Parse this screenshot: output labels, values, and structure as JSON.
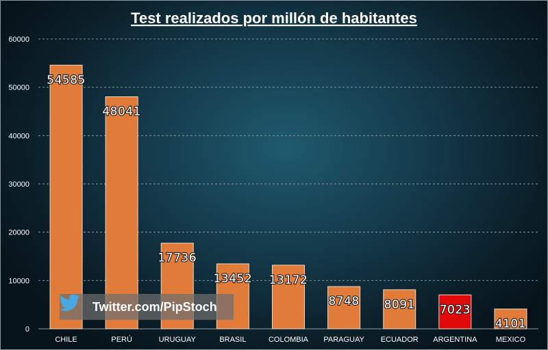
{
  "chart_data": {
    "type": "bar",
    "title": "Test realizados por millón de habitantes",
    "xlabel": "",
    "ylabel": "",
    "categories": [
      "CHILE",
      "PERÚ",
      "URUGUAY",
      "BRASIL",
      "COLOMBIA",
      "PARAGUAY",
      "ECUADOR",
      "ARGENTINA",
      "MEXICO"
    ],
    "values": [
      54585,
      48041,
      17736,
      13452,
      13172,
      8748,
      8091,
      7023,
      4101
    ],
    "value_labels": [
      "54585",
      "48041",
      "17736",
      "13452",
      "13172",
      "8748",
      "8091",
      "7023",
      "4101"
    ],
    "ylim": [
      0,
      60000
    ],
    "yticks": [
      0,
      10000,
      20000,
      30000,
      40000,
      50000,
      60000
    ],
    "ytick_labels": [
      "0",
      "10000",
      "20000",
      "30000",
      "40000",
      "50000",
      "60000"
    ],
    "grid": "horizontal dashed",
    "bar_color": "#e07b39",
    "highlight_color": "#e10a0a",
    "highlight_category": "ARGENTINA"
  },
  "watermark": {
    "text": "Twitter.com/PipStoch",
    "icon": "twitter-bird-icon"
  }
}
